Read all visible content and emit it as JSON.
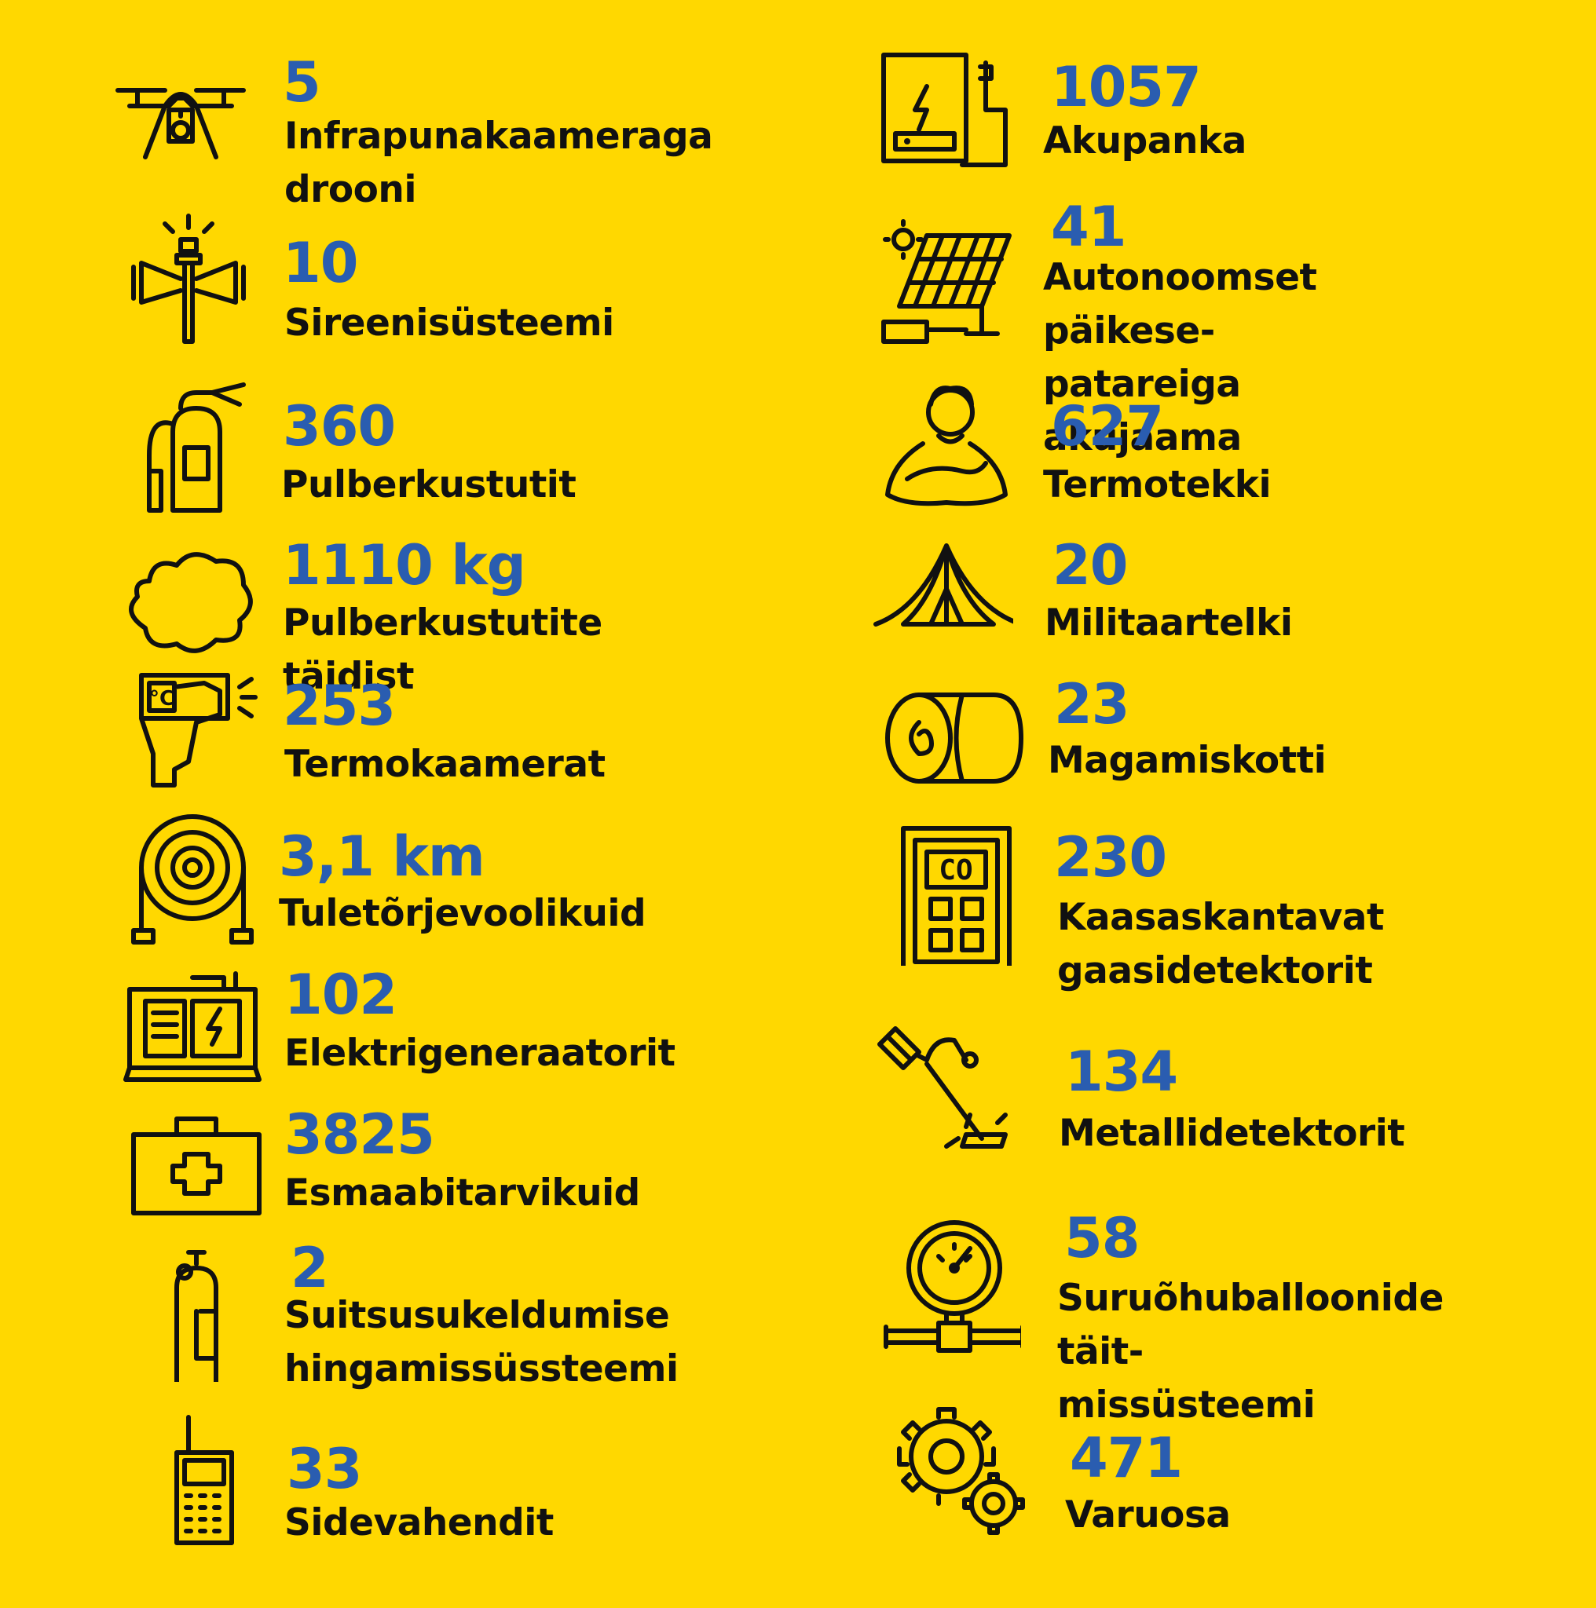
{
  "colors": {
    "background": "#FFD800",
    "number": "#2A5DB0",
    "label": "#111111"
  },
  "left": [
    {
      "icon": "drone-icon",
      "value": "5",
      "label": "Infrapunakaameraga\ndrooni"
    },
    {
      "icon": "siren-icon",
      "value": "10",
      "label": "Sireenisüsteemi"
    },
    {
      "icon": "fire-extinguisher-icon",
      "value": "360",
      "label": "Pulberkustutit"
    },
    {
      "icon": "powder-cloud-icon",
      "value": "1110 kg",
      "label": "Pulberkustutite täidist"
    },
    {
      "icon": "thermal-camera-icon",
      "value": "253",
      "label": "Termokaamerat"
    },
    {
      "icon": "fire-hose-icon",
      "value": "3,1 km",
      "label": "Tuletõrjevoolikuid"
    },
    {
      "icon": "generator-icon",
      "value": "102",
      "label": "Elektrigeneraatorit"
    },
    {
      "icon": "first-aid-kit-icon",
      "value": "3825",
      "label": "Esmaabitarvikuid"
    },
    {
      "icon": "breathing-tank-icon",
      "value": "2",
      "label": "Suitsusukeldumise\nhingamissüssteemi"
    },
    {
      "icon": "radio-icon",
      "value": "33",
      "label": "Sidevahendit"
    }
  ],
  "right": [
    {
      "icon": "power-bank-icon",
      "value": "1057",
      "label": "Akupanka"
    },
    {
      "icon": "solar-panel-icon",
      "value": "41",
      "label": "Autonoomset päikese-\npatareiga akujaama"
    },
    {
      "icon": "thermal-blanket-icon",
      "value": "627",
      "label": "Termotekki"
    },
    {
      "icon": "tent-icon",
      "value": "20",
      "label": "Militaartelki"
    },
    {
      "icon": "sleeping-bag-icon",
      "value": "23",
      "label": "Magamiskotti"
    },
    {
      "icon": "gas-detector-icon",
      "value": "230",
      "label": "Kaasaskantavat\ngaasidetektorit"
    },
    {
      "icon": "metal-detector-icon",
      "value": "134",
      "label": "Metallidetektorit"
    },
    {
      "icon": "pressure-gauge-icon",
      "value": "58",
      "label": "Suruõhuballoonide täit-\nmissüsteemi"
    },
    {
      "icon": "gears-icon",
      "value": "471",
      "label": "Varuosa"
    }
  ],
  "gas_detector": {
    "display_text": "CO"
  }
}
